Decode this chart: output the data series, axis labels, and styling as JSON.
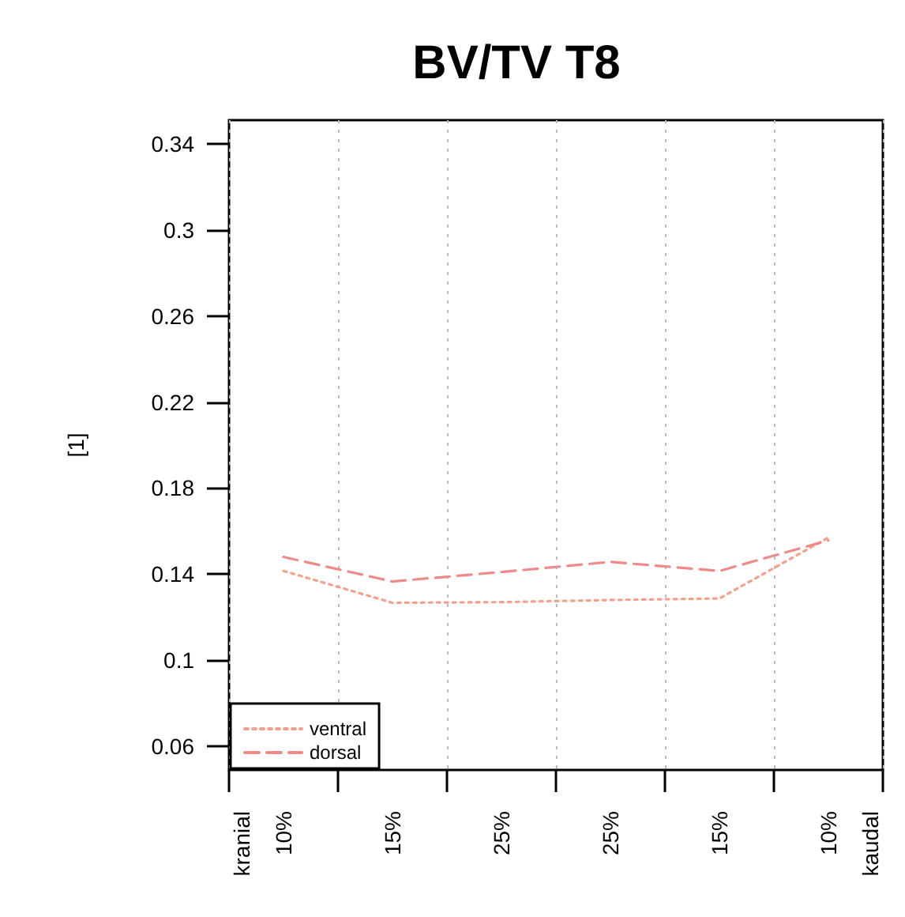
{
  "chart_data": {
    "type": "line",
    "title": "BV/TV T8",
    "ylabel": "[1]",
    "categories": [
      "10%",
      "15%",
      "25%",
      "25%",
      "15%",
      "10%"
    ],
    "series": [
      {
        "name": "ventral",
        "color": "#f4a08c",
        "line_style": "dotted",
        "values": [
          0.1415,
          0.1267,
          0.127,
          0.128,
          0.1287,
          0.157
        ]
      },
      {
        "name": "dorsal",
        "color": "#f08a8a",
        "line_style": "dashed",
        "values": [
          0.148,
          0.1366,
          0.141,
          0.1457,
          0.1415,
          0.1557
        ]
      }
    ],
    "ylim": [
      0.049,
      0.351
    ],
    "yticks": [
      0.06,
      0.1,
      0.14,
      0.18,
      0.22,
      0.26,
      0.3,
      0.34
    ],
    "annotations": [
      "kranial",
      "kaudal"
    ],
    "grid": "x",
    "legend": "bottom left"
  }
}
